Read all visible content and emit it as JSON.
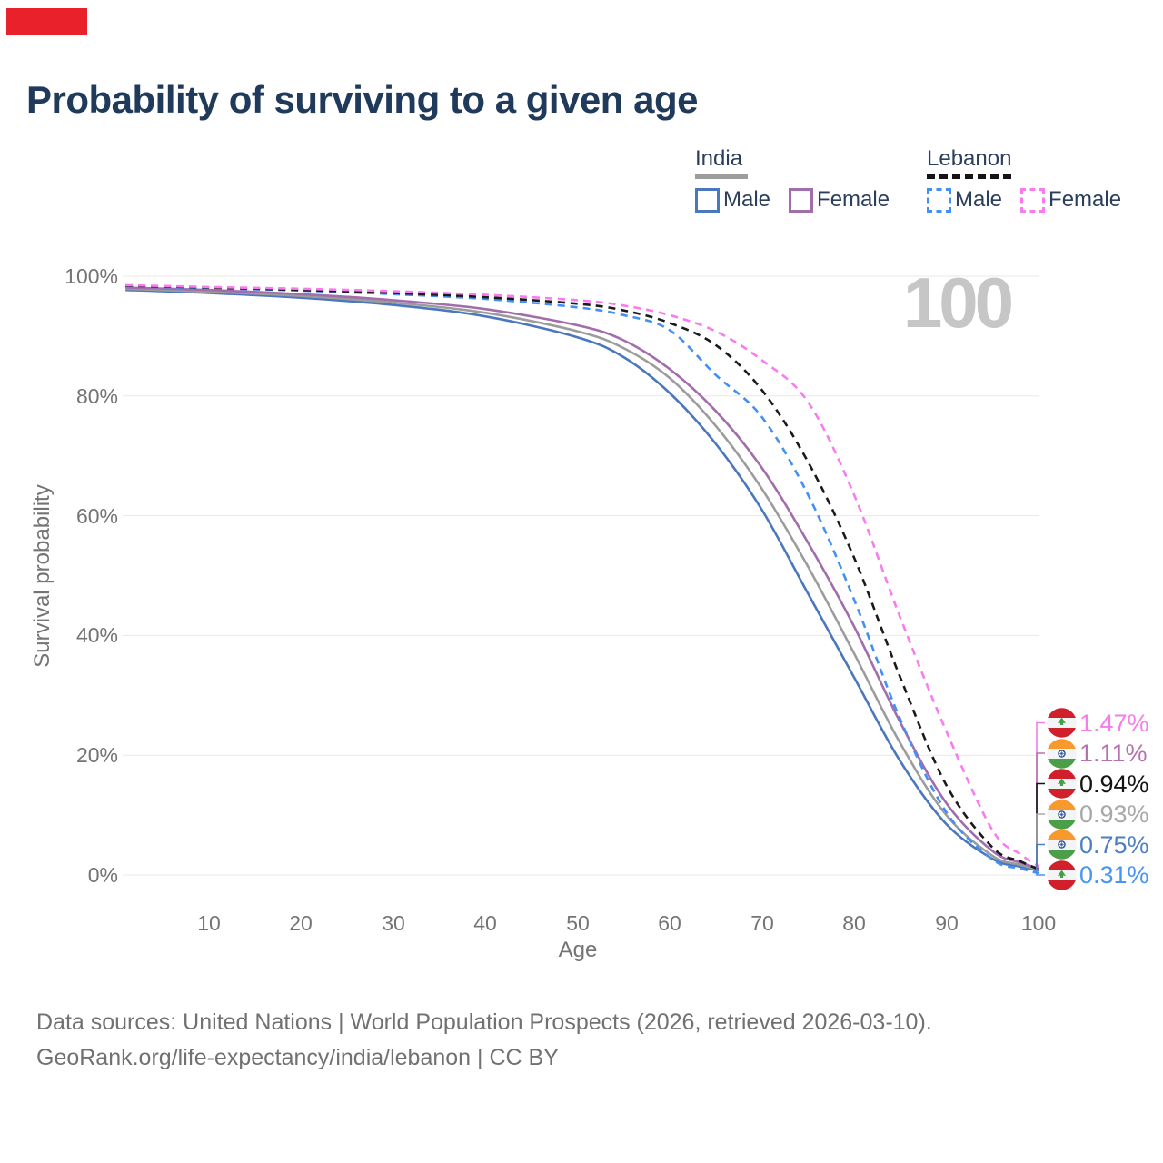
{
  "title": "Probability of surviving to a given age",
  "watermark": "100",
  "marker_color": "#e8212b",
  "legend": {
    "groups": [
      {
        "label": "India",
        "underline_style": "solid",
        "underline_color": "#9d9d9d",
        "items": [
          {
            "label": "Male",
            "color": "#4a77bd",
            "dash": false
          },
          {
            "label": "Female",
            "color": "#a26dab",
            "dash": false
          }
        ]
      },
      {
        "label": "Lebanon",
        "underline_style": "dashed",
        "underline_color": "#141414",
        "items": [
          {
            "label": "Male",
            "color": "#4190f5",
            "dash": true
          },
          {
            "label": "Female",
            "color": "#f97bef",
            "dash": true
          }
        ]
      }
    ]
  },
  "chart_data": {
    "type": "line",
    "title": "Probability of surviving to a given age",
    "xlabel": "Age",
    "ylabel": "Survival probability",
    "xlim": [
      1,
      100
    ],
    "ylim": [
      0,
      100
    ],
    "grid": "horizontal",
    "x_ticks": [
      10,
      20,
      30,
      40,
      50,
      60,
      70,
      80,
      90,
      100
    ],
    "y_ticks": [
      0,
      20,
      40,
      60,
      80,
      100
    ],
    "y_tick_suffix": "%",
    "ages": [
      1,
      10,
      20,
      30,
      40,
      50,
      55,
      60,
      65,
      70,
      75,
      80,
      85,
      90,
      95,
      98,
      100
    ],
    "series": [
      {
        "name": "India Male",
        "country": "India",
        "sex": "Male",
        "color": "#4a77bd",
        "dash": false,
        "values": [
          97.7,
          97.2,
          96.4,
          95.2,
          93.3,
          89.8,
          86.5,
          80.5,
          72.0,
          61.0,
          47.0,
          33.0,
          19.0,
          8.5,
          2.7,
          1.4,
          0.75
        ]
      },
      {
        "name": "India Both",
        "country": "India",
        "sex": "Both",
        "color": "#9c9c9c",
        "dash": false,
        "values": [
          97.9,
          97.4,
          96.7,
          95.6,
          93.9,
          90.8,
          88.0,
          83.0,
          75.0,
          64.5,
          51.5,
          37.0,
          22.0,
          10.0,
          3.2,
          1.7,
          0.93
        ]
      },
      {
        "name": "India Female",
        "country": "India",
        "sex": "Female",
        "color": "#a26dab",
        "dash": false,
        "values": [
          98.1,
          97.7,
          97.0,
          96.0,
          94.5,
          91.8,
          89.3,
          84.5,
          77.5,
          68.0,
          55.5,
          41.5,
          25.5,
          12.0,
          4.0,
          2.1,
          1.11
        ]
      },
      {
        "name": "Lebanon Male",
        "country": "Lebanon",
        "sex": "Male",
        "color": "#4190f5",
        "dash": true,
        "values": [
          98.3,
          98.0,
          97.6,
          97.0,
          96.2,
          94.8,
          93.5,
          91.0,
          83.5,
          76.5,
          63.5,
          46.0,
          26.0,
          10.5,
          2.6,
          1.1,
          0.31
        ]
      },
      {
        "name": "Lebanon Both",
        "country": "Lebanon",
        "sex": "Both",
        "color": "#1a1a1a",
        "dash": true,
        "values": [
          98.4,
          98.1,
          97.7,
          97.2,
          96.5,
          95.4,
          94.3,
          92.2,
          88.5,
          81.0,
          69.0,
          53.0,
          33.0,
          15.0,
          4.6,
          2.3,
          0.94
        ]
      },
      {
        "name": "Lebanon Female",
        "country": "Lebanon",
        "sex": "Female",
        "color": "#f97bef",
        "dash": true,
        "values": [
          98.5,
          98.2,
          97.9,
          97.5,
          96.9,
          96.0,
          95.1,
          93.5,
          90.8,
          86.0,
          79.0,
          63.5,
          43.0,
          24.0,
          7.5,
          3.5,
          1.47
        ]
      }
    ],
    "end_labels": [
      {
        "series": "Lebanon Female",
        "flag": "lebanon",
        "value": "1.47%",
        "color": "#f67ce9"
      },
      {
        "series": "India Female",
        "flag": "india",
        "value": "1.11%",
        "color": "#b573ae"
      },
      {
        "series": "Lebanon Both",
        "flag": "lebanon",
        "value": "0.94%",
        "color": "#141414"
      },
      {
        "series": "India Both",
        "flag": "india",
        "value": "0.93%",
        "color": "#a8a8a8"
      },
      {
        "series": "India Male",
        "flag": "india",
        "value": "0.75%",
        "color": "#4d7fc3"
      },
      {
        "series": "Lebanon Male",
        "flag": "lebanon",
        "value": "0.31%",
        "color": "#4694f5"
      }
    ]
  },
  "footer": {
    "line1": "Data sources: United Nations | World Population Prospects (2026, retrieved 2026-03-10).",
    "line2": "GeoRank.org/life-expectancy/india/lebanon | CC BY"
  }
}
